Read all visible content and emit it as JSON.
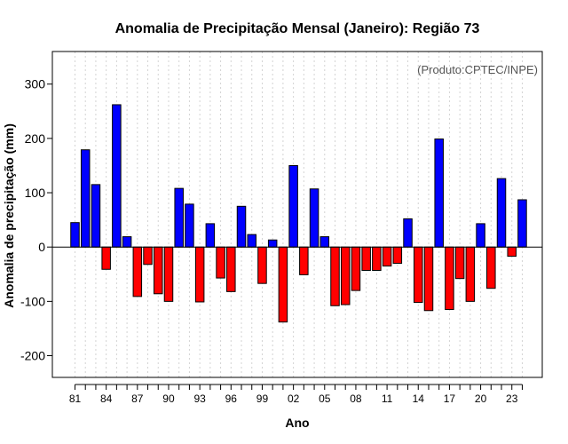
{
  "chart_data": {
    "type": "bar",
    "title": "Anomalia de Precipitação Mensal (Janeiro): Região 73",
    "xlabel": "Ano",
    "ylabel": "Anomalia de precipitação (mm)",
    "credit": "(Produto:CPTEC/INPE)",
    "ylim": [
      -240,
      360
    ],
    "yticks": [
      -200,
      -100,
      0,
      100,
      200,
      300
    ],
    "categories": [
      "1981",
      "1982",
      "1983",
      "1984",
      "1985",
      "1986",
      "1987",
      "1988",
      "1989",
      "1990",
      "1991",
      "1992",
      "1993",
      "1994",
      "1995",
      "1996",
      "1997",
      "1998",
      "1999",
      "2000",
      "2001",
      "2002",
      "2003",
      "2004",
      "2005",
      "2006",
      "2007",
      "2008",
      "2009",
      "2010",
      "2011",
      "2012",
      "2013",
      "2014",
      "2015",
      "2016",
      "2017",
      "2018",
      "2019",
      "2020",
      "2021",
      "2022",
      "2023",
      "2024"
    ],
    "values": [
      45,
      179,
      115,
      -41,
      262,
      19,
      -91,
      -32,
      -86,
      -100,
      108,
      79,
      -101,
      43,
      -57,
      -82,
      75,
      23,
      -67,
      13,
      -138,
      150,
      -51,
      107,
      19,
      -108,
      -106,
      -80,
      -43,
      -43,
      -35,
      -30,
      52,
      -102,
      -117,
      199,
      -115,
      -58,
      -100,
      43,
      -76,
      126,
      -17,
      87
    ],
    "xtick_labels": [
      {
        "index": 0,
        "label": "81"
      },
      {
        "index": 3,
        "label": "84"
      },
      {
        "index": 6,
        "label": "87"
      },
      {
        "index": 9,
        "label": "90"
      },
      {
        "index": 12,
        "label": "93"
      },
      {
        "index": 15,
        "label": "96"
      },
      {
        "index": 18,
        "label": "99"
      },
      {
        "index": 21,
        "label": "02"
      },
      {
        "index": 24,
        "label": "05"
      },
      {
        "index": 27,
        "label": "08"
      },
      {
        "index": 30,
        "label": "11"
      },
      {
        "index": 33,
        "label": "14"
      },
      {
        "index": 36,
        "label": "17"
      },
      {
        "index": 39,
        "label": "20"
      },
      {
        "index": 42,
        "label": "23"
      }
    ],
    "colors": {
      "positive": "#0000ff",
      "negative": "#ff0000",
      "bar_stroke": "#000000"
    },
    "grid": true
  }
}
